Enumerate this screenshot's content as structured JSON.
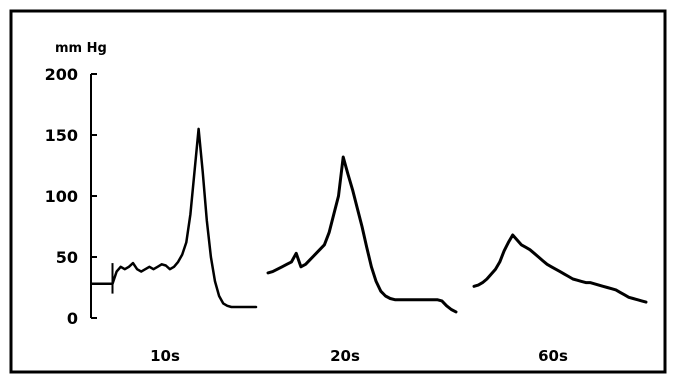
{
  "chart_data": {
    "type": "line",
    "unit_label": "mm Hg",
    "ylim": [
      0,
      200
    ],
    "yticks": [
      0,
      50,
      100,
      150,
      200
    ],
    "grid": false,
    "panels": [
      {
        "label": "10s",
        "x": [
          0,
          1,
          2,
          3,
          4,
          5,
          6,
          7,
          8,
          9,
          10,
          11,
          12,
          13,
          14,
          15,
          16,
          17,
          18,
          19,
          20,
          21,
          22,
          23,
          24,
          25,
          26,
          27,
          28,
          29,
          30,
          31,
          32,
          33,
          34,
          35,
          36,
          37,
          38,
          39,
          40
        ],
        "y": [
          28,
          28,
          28,
          28,
          28,
          28,
          38,
          42,
          40,
          42,
          45,
          40,
          38,
          40,
          42,
          40,
          42,
          44,
          43,
          40,
          42,
          46,
          52,
          62,
          85,
          120,
          155,
          120,
          80,
          50,
          30,
          18,
          12,
          10,
          9,
          9,
          9,
          9,
          9,
          9,
          9
        ]
      },
      {
        "label": "20s",
        "x": [
          0,
          1,
          2,
          3,
          4,
          5,
          6,
          7,
          8,
          9,
          10,
          11,
          12,
          13,
          14,
          15,
          16,
          17,
          18,
          19,
          20,
          21,
          22,
          23,
          24,
          25,
          26,
          27,
          28,
          29,
          30,
          31,
          32,
          33,
          34,
          35,
          36,
          37,
          38,
          39,
          40
        ],
        "y": [
          37,
          38,
          40,
          42,
          44,
          46,
          53,
          42,
          44,
          48,
          52,
          56,
          60,
          70,
          85,
          100,
          132,
          118,
          105,
          90,
          75,
          58,
          42,
          30,
          22,
          18,
          16,
          15,
          15,
          15,
          15,
          15,
          15,
          15,
          15,
          15,
          15,
          14,
          10,
          7,
          5
        ]
      },
      {
        "label": "60s",
        "x": [
          0,
          1,
          2,
          3,
          4,
          5,
          6,
          7,
          8,
          9,
          10,
          11,
          12,
          13,
          14,
          15,
          16,
          17,
          18,
          19,
          20,
          21,
          22,
          23,
          24,
          25,
          26,
          27,
          28,
          29,
          30,
          31,
          32,
          33,
          34,
          35,
          36,
          37,
          38,
          39,
          40
        ],
        "y": [
          26,
          27,
          29,
          32,
          36,
          40,
          46,
          55,
          62,
          68,
          64,
          60,
          58,
          56,
          53,
          50,
          47,
          44,
          42,
          40,
          38,
          36,
          34,
          32,
          31,
          30,
          29,
          29,
          28,
          27,
          26,
          25,
          24,
          23,
          21,
          19,
          17,
          16,
          15,
          14,
          13
        ]
      }
    ]
  }
}
